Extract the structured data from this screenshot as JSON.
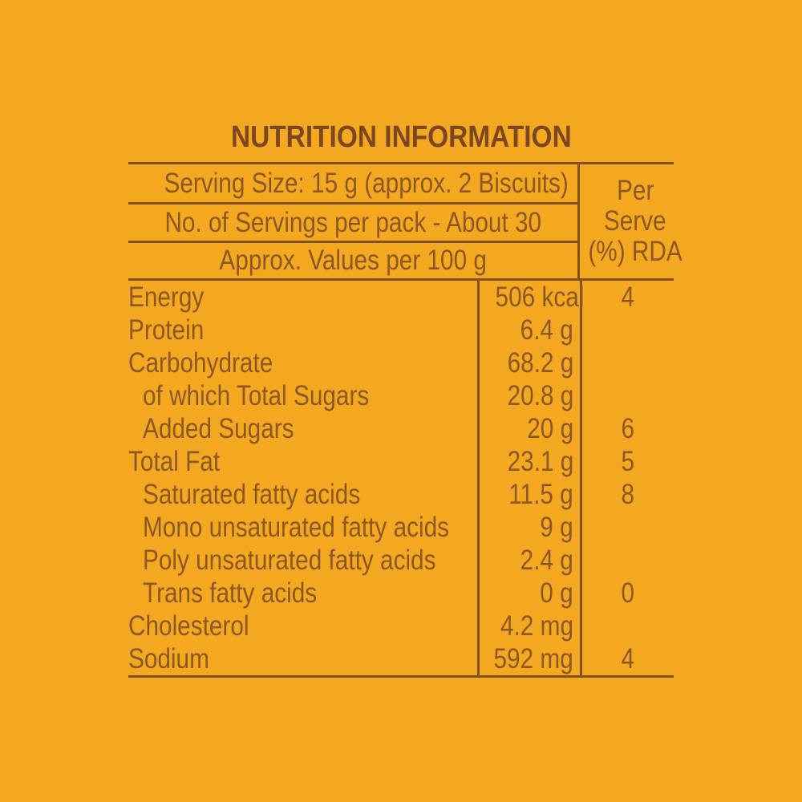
{
  "title": "NUTRITION INFORMATION",
  "header": {
    "rows": [
      "Serving Size: 15 g (approx. 2 Biscuits)",
      "No. of Servings per pack - About 30",
      "Approx. Values per 100 g"
    ],
    "per_serve": [
      "Per",
      "Serve",
      "(%) RDA"
    ]
  },
  "nutrients": [
    {
      "name": "Energy",
      "value": "506 kcal",
      "rda": "4",
      "indent": false
    },
    {
      "name": "Protein",
      "value": "6.4 g",
      "rda": "",
      "indent": false
    },
    {
      "name": "Carbohydrate",
      "value": "68.2 g",
      "rda": "",
      "indent": false
    },
    {
      "name": "of which Total Sugars",
      "value": "20.8 g",
      "rda": "",
      "indent": true
    },
    {
      "name": "Added Sugars",
      "value": "20 g",
      "rda": "6",
      "indent": true
    },
    {
      "name": "Total Fat",
      "value": "23.1 g",
      "rda": "5",
      "indent": false
    },
    {
      "name": "Saturated fatty acids",
      "value": "11.5 g",
      "rda": "8",
      "indent": true
    },
    {
      "name": "Mono unsaturated fatty acids",
      "value": "9 g",
      "rda": "",
      "indent": true
    },
    {
      "name": "Poly unsaturated fatty acids",
      "value": "2.4 g",
      "rda": "",
      "indent": true
    },
    {
      "name": "Trans fatty acids",
      "value": "0 g",
      "rda": "0",
      "indent": true
    },
    {
      "name": "Cholesterol",
      "value": "4.2 mg",
      "rda": "",
      "indent": false
    },
    {
      "name": "Sodium",
      "value": "592 mg",
      "rda": "4",
      "indent": false
    }
  ],
  "colors": {
    "background": "#F3A81F",
    "rule_lines": "#835020",
    "body_text": "#8B5825",
    "title_text": "#7A4721"
  }
}
